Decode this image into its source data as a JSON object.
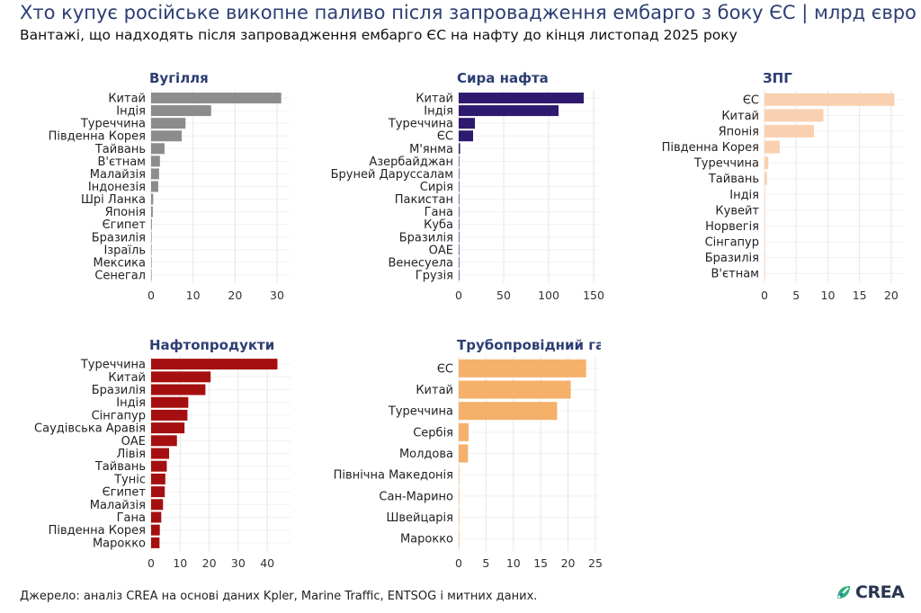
{
  "header": {
    "title": "Хто купує російське викопне паливо після запровадження ембарго з боку ЄС | млрд євро",
    "subtitle": "Вантажі, що надходять після запровадження ембарго ЄС на нафту до кінця листопад 2025 року"
  },
  "footer": {
    "source": "Джерело: аналіз CREA на основі даних Kpler, Marine Traffic, ENTSOG і митних даних.",
    "logo_text": "CREA",
    "logo_icon": "crea-leaf-icon"
  },
  "chart_data": [
    {
      "type": "bar",
      "orientation": "horizontal",
      "title": "Вугілля",
      "color": "#8c8c8c",
      "categories": [
        "Китай",
        "Індія",
        "Туреччина",
        "Південна Корея",
        "Тайвань",
        "В'єтнам",
        "Малайзія",
        "Індонезія",
        "Шрі Ланка",
        "Японія",
        "Єгипет",
        "Бразилія",
        "Ізраїль",
        "Мексика",
        "Сенегал"
      ],
      "values": [
        31,
        14.3,
        8.2,
        7.3,
        3.2,
        2.1,
        1.9,
        1.7,
        0.5,
        0.4,
        0.2,
        0.1,
        0.1,
        0.1,
        0.1
      ],
      "xlim": [
        0,
        33
      ],
      "xticks": [
        0,
        10,
        20,
        30
      ]
    },
    {
      "type": "bar",
      "orientation": "horizontal",
      "title": "Сира нафта",
      "color": "#2e1a6e",
      "categories": [
        "Китай",
        "Індія",
        "Туреччина",
        "ЄС",
        "М'янма",
        "Азербайджан",
        "Бруней Даруссалам",
        "Сирія",
        "Пакистан",
        "Гана",
        "Куба",
        "Бразилія",
        "ОАЕ",
        "Венесуела",
        "Грузія"
      ],
      "values": [
        139,
        111,
        18,
        16,
        1.5,
        0.5,
        0.3,
        0.3,
        0.3,
        0.2,
        0.2,
        0.2,
        0.1,
        0.1,
        0.1
      ],
      "xlim": [
        0,
        155
      ],
      "xticks": [
        0,
        50,
        100,
        150
      ]
    },
    {
      "type": "bar",
      "orientation": "horizontal",
      "title": "ЗПГ",
      "color": "#f9d1b0",
      "categories": [
        "ЄС",
        "Китай",
        "Японія",
        "Південна Корея",
        "Туреччина",
        "Тайвань",
        "Індія",
        "Кувейт",
        "Норвегія",
        "Сінгапур",
        "Бразилія",
        "В'єтнам"
      ],
      "values": [
        20.5,
        9.3,
        7.8,
        2.4,
        0.6,
        0.4,
        0.1,
        0.1,
        0.1,
        0.1,
        0.1,
        0.1
      ],
      "xlim": [
        0,
        22
      ],
      "xticks": [
        0,
        5,
        10,
        15,
        20
      ]
    },
    {
      "type": "bar",
      "orientation": "horizontal",
      "title": "Нафтопродукти",
      "color": "#a50f0f",
      "categories": [
        "Туреччина",
        "Китай",
        "Бразилія",
        "Індія",
        "Сінгапур",
        "Саудівська Аравія",
        "ОАЕ",
        "Лівія",
        "Тайвань",
        "Туніс",
        "Єгипет",
        "Малайзія",
        "Гана",
        "Південна Корея",
        "Марокко"
      ],
      "values": [
        43.5,
        20.5,
        18.7,
        12.8,
        12.5,
        11.5,
        8.9,
        6.2,
        5.4,
        4.9,
        4.7,
        4.1,
        3.5,
        3.0,
        2.9
      ],
      "xlim": [
        0,
        48
      ],
      "xticks": [
        0,
        10,
        20,
        30,
        40
      ]
    },
    {
      "type": "bar",
      "orientation": "horizontal",
      "title": "Трубопровідний газ",
      "color": "#f5b06a",
      "categories": [
        "ЄС",
        "Китай",
        "Туреччина",
        "Сербія",
        "Молдова",
        "Північна Македонія",
        "Сан-Марино",
        "Швейцарія",
        "Марокко"
      ],
      "values": [
        23.3,
        20.5,
        18.0,
        1.8,
        1.7,
        0.1,
        0.05,
        0.05,
        0.02
      ],
      "xlim": [
        0,
        25.5
      ],
      "xticks": [
        0,
        5,
        10,
        15,
        20,
        25
      ]
    }
  ]
}
